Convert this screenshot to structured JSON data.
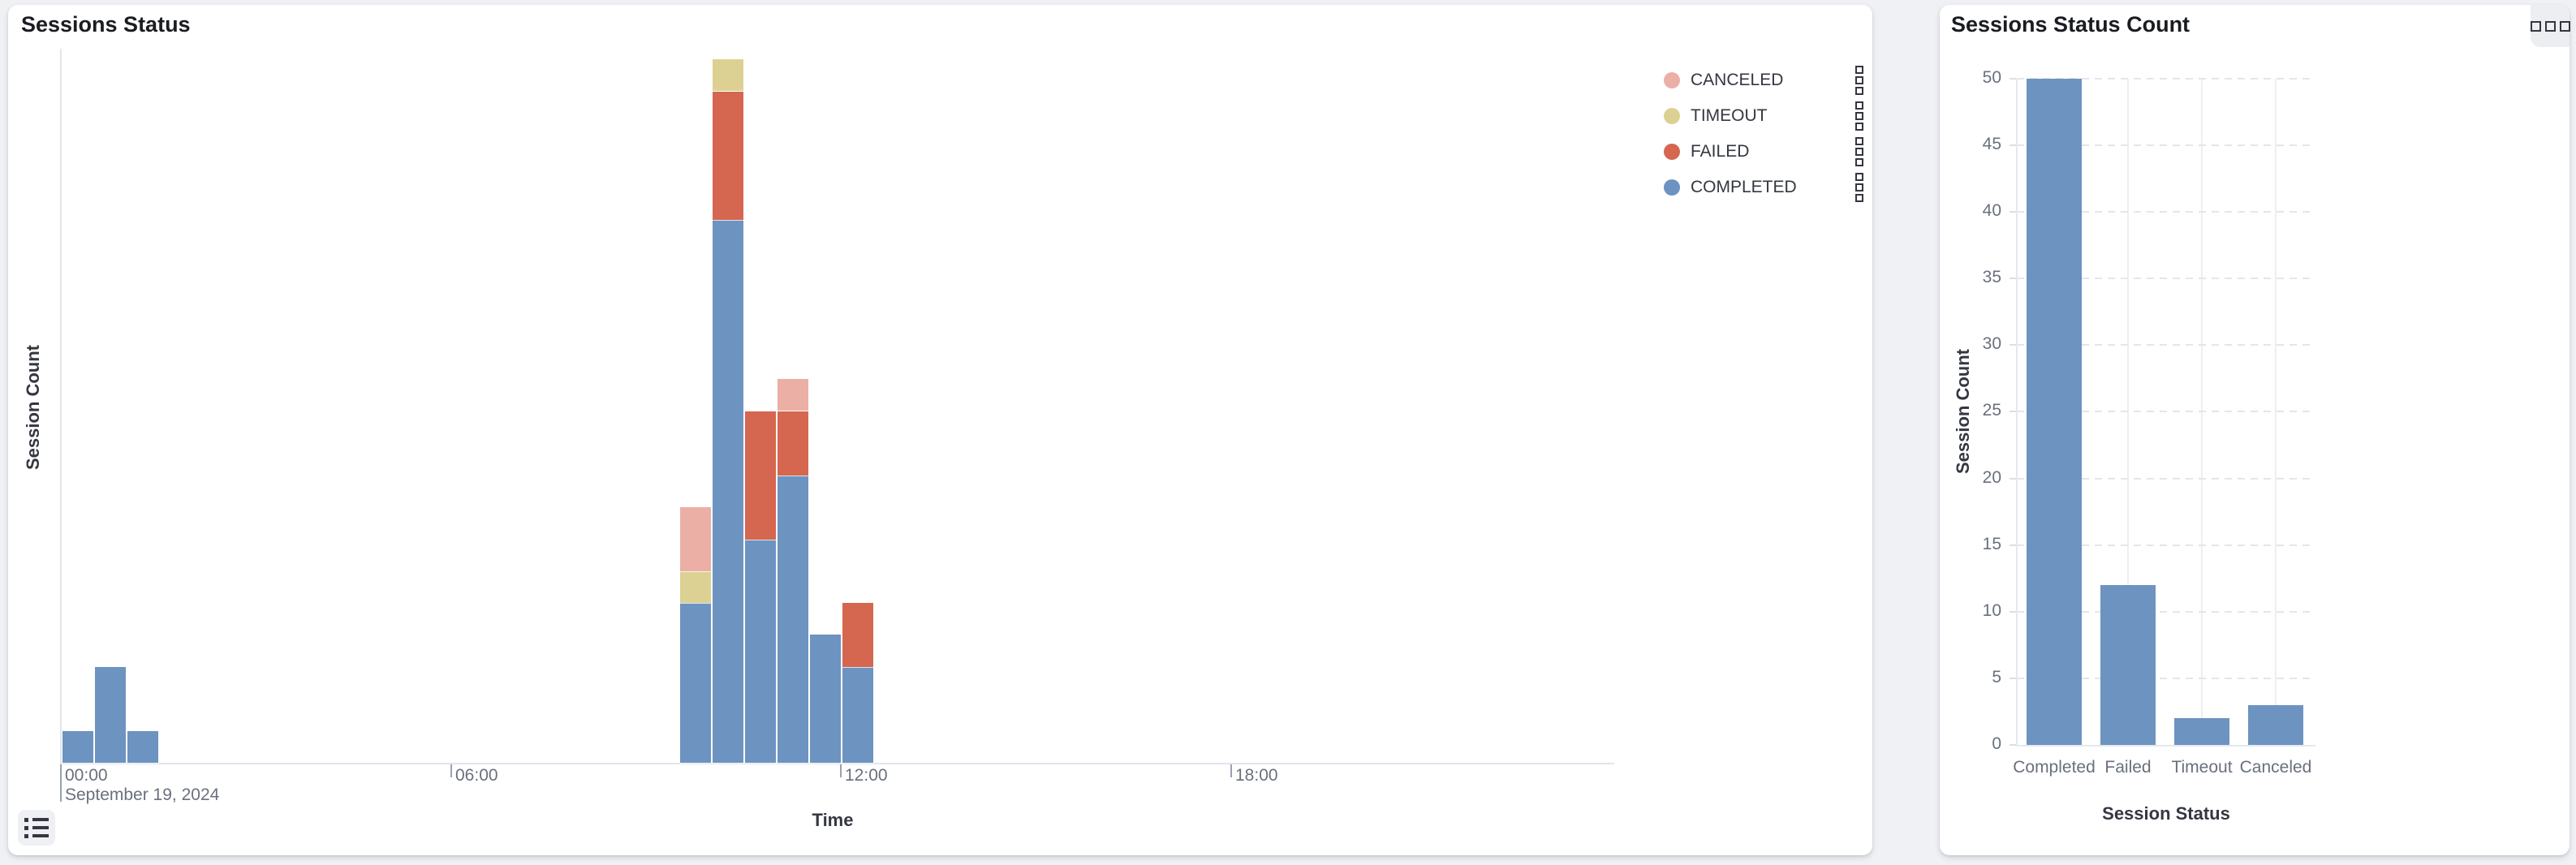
{
  "app": {
    "background": "#F0F1F4"
  },
  "left_panel": {
    "title": "Sessions Status",
    "xlabel": "Time",
    "ylabel": "Session Count",
    "legend": {
      "items": [
        {
          "label": "CANCELED",
          "color": "#EBAFA5"
        },
        {
          "label": "TIMEOUT",
          "color": "#DCD192"
        },
        {
          "label": "FAILED",
          "color": "#D5664F"
        },
        {
          "label": "COMPLETED",
          "color": "#6D93C0"
        }
      ]
    }
  },
  "right_panel": {
    "title": "Sessions Status Count",
    "xlabel": "Session Status",
    "ylabel": "Session Count"
  },
  "chart_data": [
    {
      "type": "bar",
      "stacked": true,
      "title": "Sessions Status",
      "xlabel": "Time",
      "ylabel": "Session Count",
      "x": [
        "00:00",
        "00:30",
        "01:00",
        "09:30",
        "10:00",
        "10:30",
        "11:00",
        "11:30",
        "12:00"
      ],
      "x_hours": [
        0,
        0.5,
        1,
        9.5,
        10,
        10.5,
        11,
        11.5,
        12
      ],
      "bucket_interval": "30m",
      "x_axis_ticks": [
        {
          "label": "00:00",
          "hour": 0,
          "date": "September 19, 2024"
        },
        {
          "label": "06:00",
          "hour": 6
        },
        {
          "label": "12:00",
          "hour": 12
        },
        {
          "label": "18:00",
          "hour": 18
        }
      ],
      "x_axis_range_hours": [
        0,
        23.8
      ],
      "series": [
        {
          "name": "COMPLETED",
          "color": "#6D93C0",
          "values": [
            1,
            3,
            1,
            5,
            17,
            7,
            9,
            4,
            3
          ]
        },
        {
          "name": "FAILED",
          "color": "#D5664F",
          "values": [
            0,
            0,
            0,
            0,
            4,
            4,
            2,
            0,
            2
          ]
        },
        {
          "name": "TIMEOUT",
          "color": "#DCD192",
          "values": [
            0,
            0,
            0,
            1,
            1,
            0,
            0,
            0,
            0
          ]
        },
        {
          "name": "CANCELED",
          "color": "#EBAFA5",
          "values": [
            0,
            0,
            0,
            2,
            0,
            0,
            1,
            0,
            0
          ]
        }
      ],
      "legend_position": "right",
      "y_axis_labels_visible": false
    },
    {
      "type": "bar",
      "title": "Sessions Status Count",
      "xlabel": "Session Status",
      "ylabel": "Session Count",
      "categories": [
        "Completed",
        "Failed",
        "Timeout",
        "Canceled"
      ],
      "values": [
        50,
        12,
        2,
        3
      ],
      "bar_color": "#6D93C0",
      "ylim": [
        0,
        50
      ],
      "y_ticks": [
        0,
        5,
        10,
        15,
        20,
        25,
        30,
        35,
        40,
        45,
        50
      ],
      "grid": {
        "horizontal": "dashed",
        "vertical": "solid"
      }
    }
  ]
}
